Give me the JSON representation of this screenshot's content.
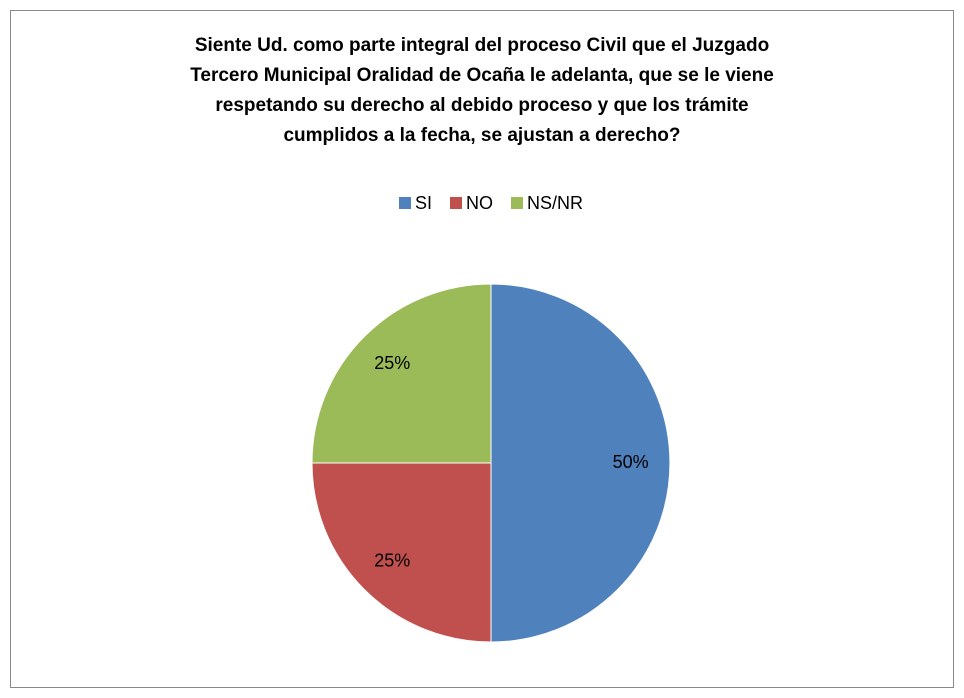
{
  "chart_data": {
    "type": "pie",
    "title": [
      "Siente Ud. como parte integral del proceso Civil que el Juzgado",
      "Tercero Municipal Oralidad de Ocaña le adelanta, que se le viene",
      "respetando su derecho al debido proceso y que los trámite",
      "cumplidos a la fecha, se ajustan a derecho?"
    ],
    "categories": [
      "SI",
      "NO",
      "NS/NR"
    ],
    "values": [
      50,
      25,
      25
    ],
    "value_labels": [
      "50%",
      "25%",
      "25%"
    ],
    "colors": [
      "#4f81bd",
      "#c0504d",
      "#9bbb59"
    ],
    "legend": "top"
  }
}
